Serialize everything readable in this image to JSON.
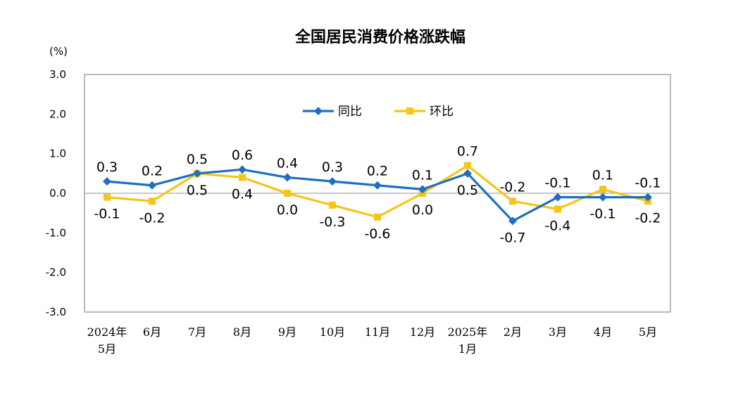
{
  "chart_data": {
    "type": "line",
    "title": "全国居民消费价格涨跌幅",
    "unit": "(%)",
    "categories": [
      [
        "2024年",
        "5月"
      ],
      [
        "6月"
      ],
      [
        "7月"
      ],
      [
        "8月"
      ],
      [
        "9月"
      ],
      [
        "10月"
      ],
      [
        "11月"
      ],
      [
        "12月"
      ],
      [
        "2025年",
        "1月"
      ],
      [
        "2月"
      ],
      [
        "3月"
      ],
      [
        "4月"
      ],
      [
        "5月"
      ]
    ],
    "ylim": [
      -3.0,
      3.0
    ],
    "yticks": [
      "3.0",
      "2.0",
      "1.0",
      "0.0",
      "-1.0",
      "-2.0",
      "-3.0"
    ],
    "ytick_values": [
      3,
      2,
      1,
      0,
      -1,
      -2,
      -3
    ],
    "legend_position": "top-center",
    "grid": false,
    "series": [
      {
        "name": "同比",
        "color": "#1f6fc1",
        "marker": "diamond",
        "values": [
          0.3,
          0.2,
          0.5,
          0.6,
          0.4,
          0.3,
          0.2,
          0.1,
          0.5,
          -0.7,
          -0.1,
          -0.1,
          -0.1
        ],
        "labels": [
          "0.3",
          "0.2",
          "0.5",
          "0.6",
          "0.4",
          "0.3",
          "0.2",
          "0.1",
          "0.5",
          "-0.7",
          "-0.1",
          "-0.1",
          "-0.1"
        ],
        "label_side": [
          "above",
          "above",
          "above",
          "above",
          "above",
          "above",
          "above",
          "above",
          "below",
          "below",
          "above",
          "below",
          "above"
        ]
      },
      {
        "name": "环比",
        "color": "#f5c518",
        "marker": "square",
        "values": [
          -0.1,
          -0.2,
          0.5,
          0.4,
          0.0,
          -0.3,
          -0.6,
          0.0,
          0.7,
          -0.2,
          -0.4,
          0.1,
          -0.2
        ],
        "labels": [
          "-0.1",
          "-0.2",
          "0.5",
          "0.4",
          "0.0",
          "-0.3",
          "-0.6",
          "0.0",
          "0.7",
          "-0.2",
          "-0.4",
          "0.1",
          "-0.2"
        ],
        "label_side": [
          "below",
          "below",
          "below",
          "below",
          "below",
          "below",
          "below",
          "below",
          "above",
          "above",
          "below",
          "above",
          "below"
        ]
      }
    ]
  }
}
